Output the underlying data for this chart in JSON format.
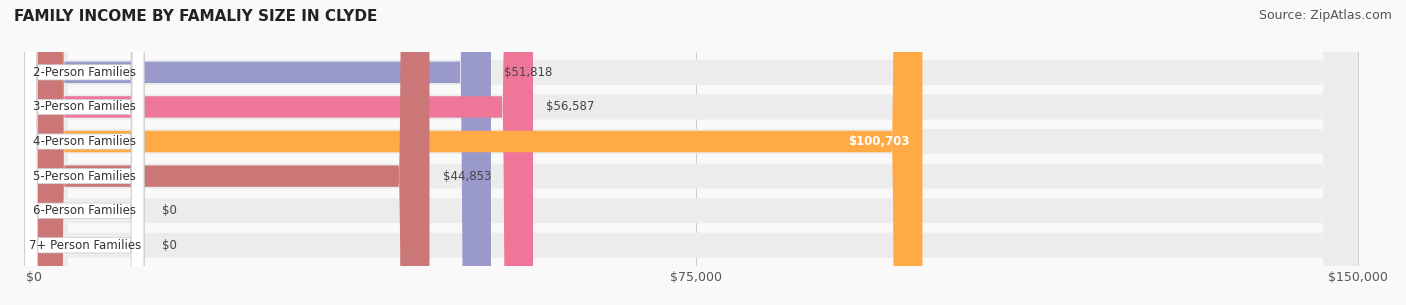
{
  "title": "FAMILY INCOME BY FAMALIY SIZE IN CLYDE",
  "source": "Source: ZipAtlas.com",
  "categories": [
    "2-Person Families",
    "3-Person Families",
    "4-Person Families",
    "5-Person Families",
    "6-Person Families",
    "7+ Person Families"
  ],
  "values": [
    51818,
    56587,
    100703,
    44853,
    0,
    0
  ],
  "bar_colors": [
    "#9999cc",
    "#ee7799",
    "#ffaa44",
    "#cc7777",
    "#aabbdd",
    "#ccaacc"
  ],
  "label_inside": [
    false,
    false,
    true,
    false,
    false,
    false
  ],
  "xlim": [
    0,
    150000
  ],
  "xticks": [
    0,
    75000,
    150000
  ],
  "xtick_labels": [
    "$0",
    "$75,000",
    "$150,000"
  ],
  "value_labels": [
    "$51,818",
    "$56,587",
    "$100,703",
    "$44,853",
    "$0",
    "$0"
  ],
  "title_fontsize": 11,
  "source_fontsize": 9,
  "bar_label_fontsize": 8.5,
  "category_fontsize": 8.5,
  "tick_fontsize": 9
}
